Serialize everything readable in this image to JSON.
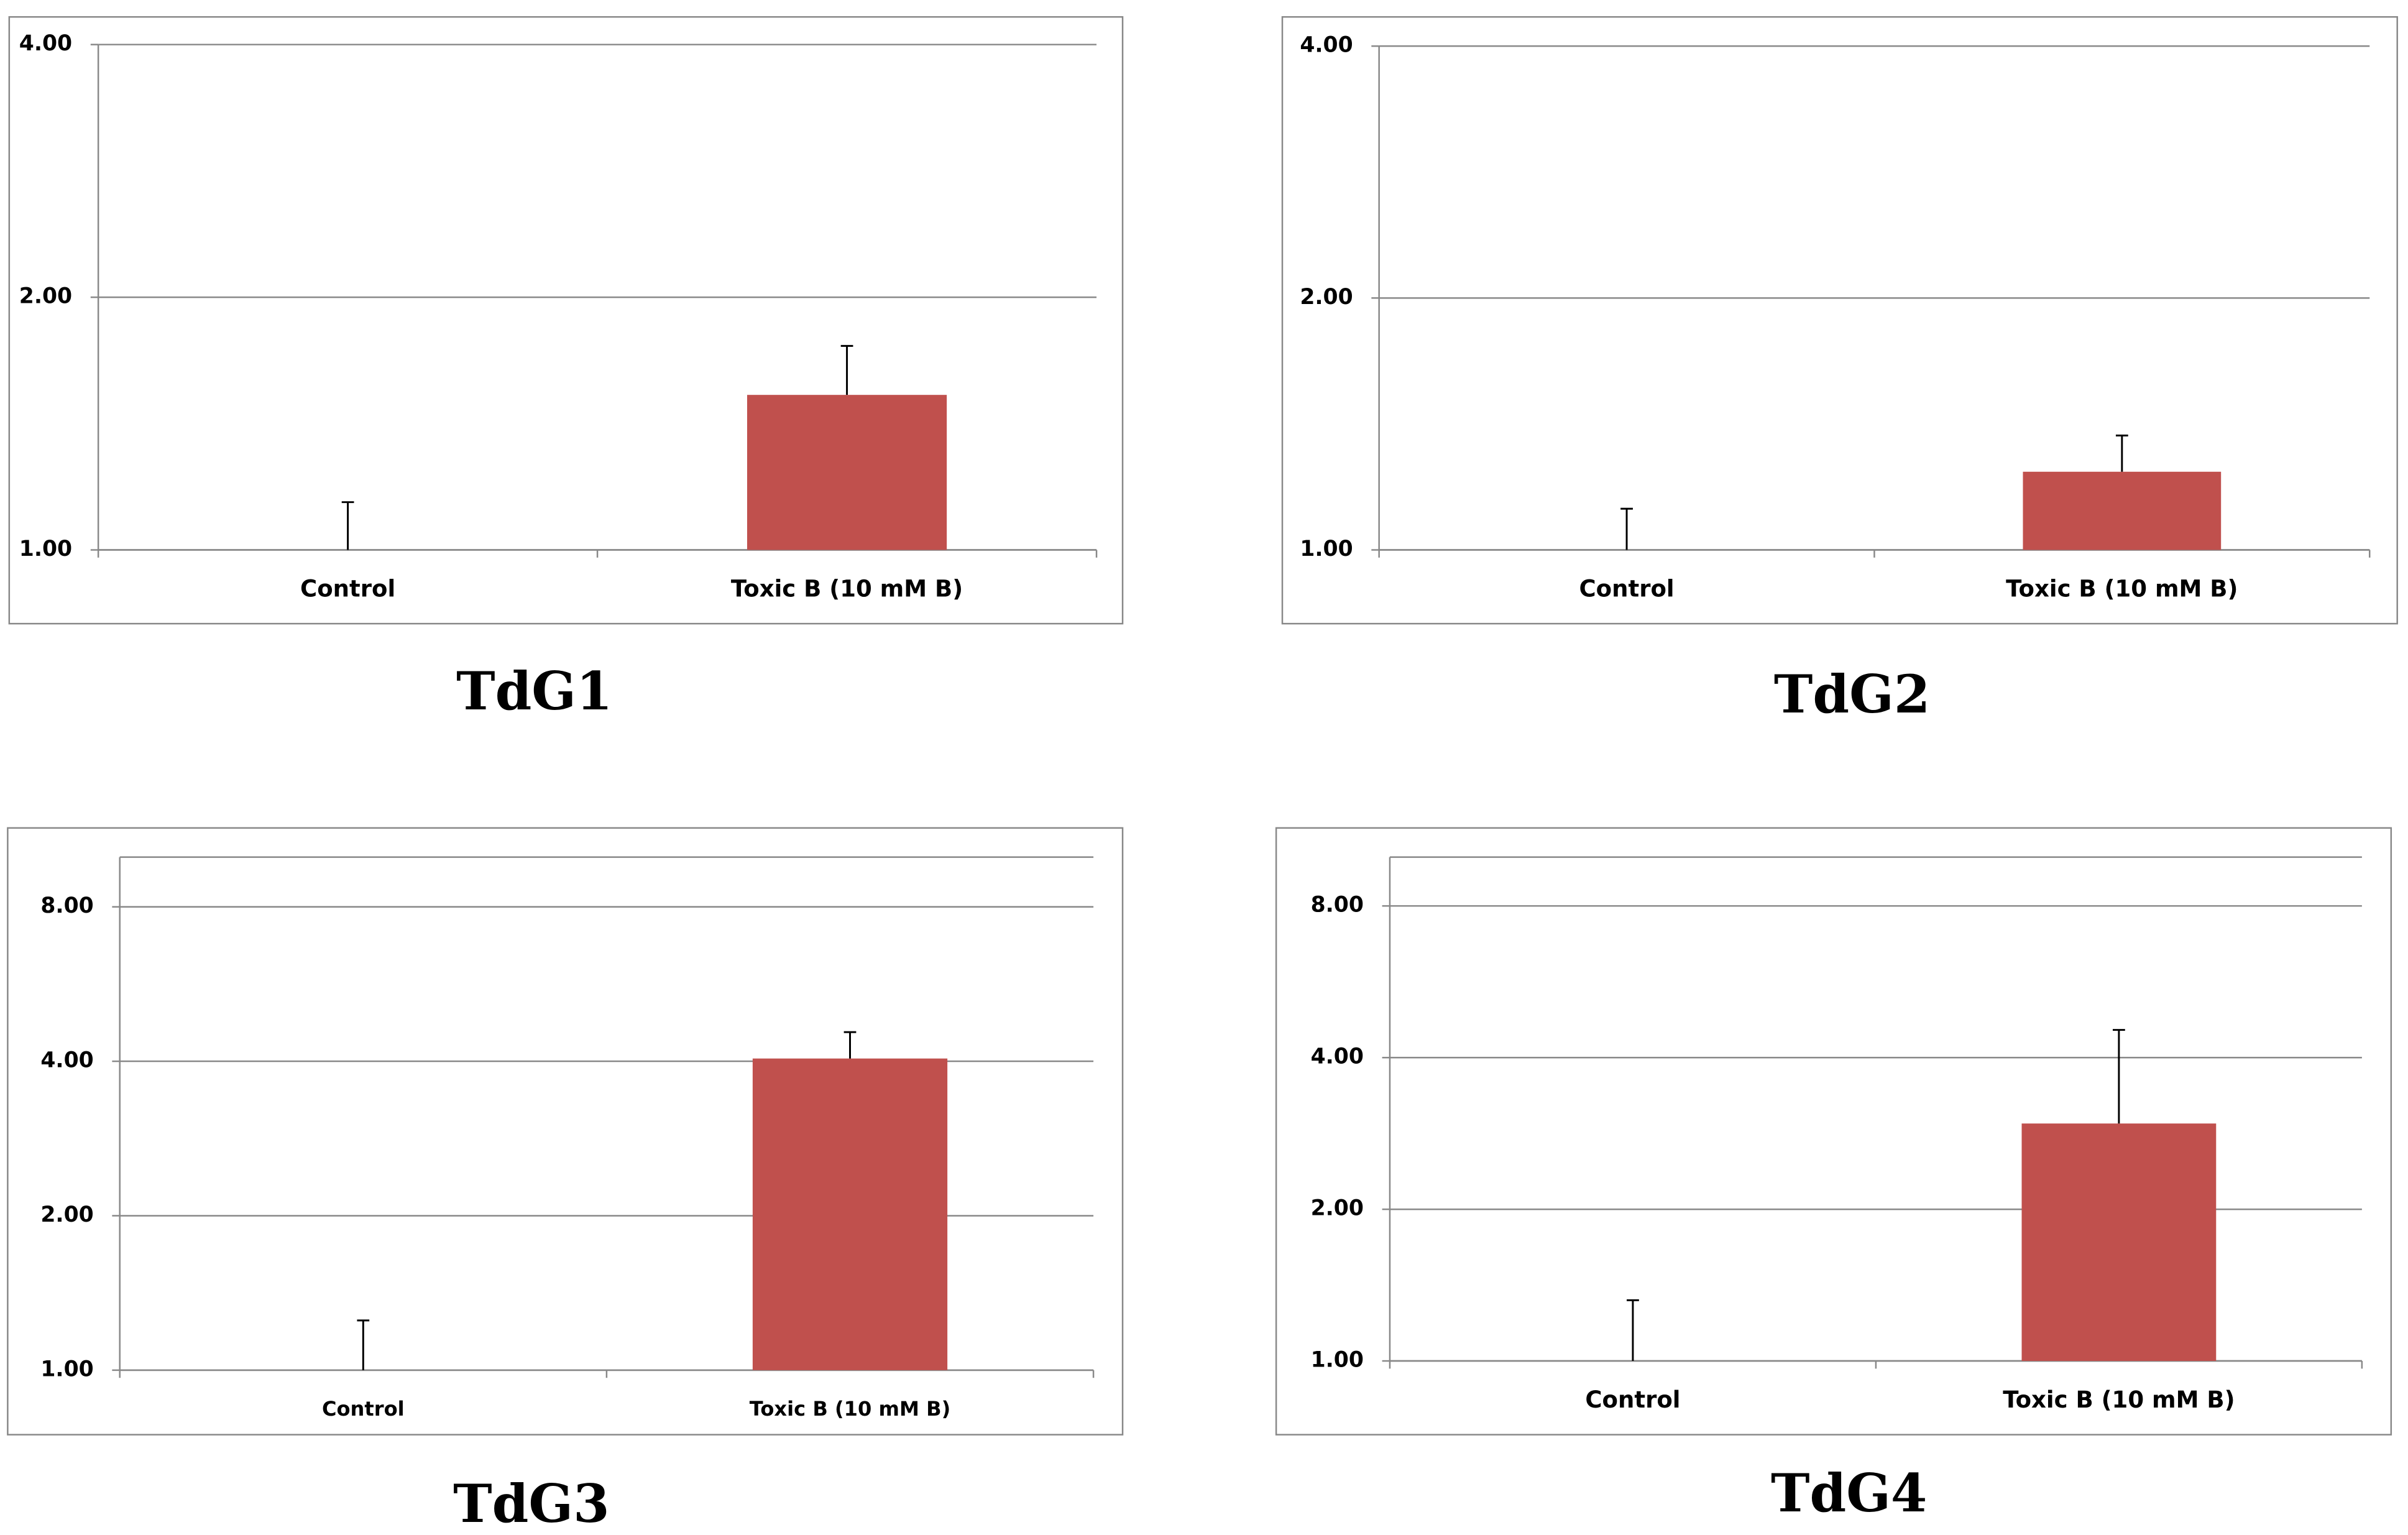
{
  "chart_data": [
    {
      "type": "bar",
      "title": "TdG1",
      "yscale": "log",
      "grid": true,
      "color": "#c0504d",
      "categories": [
        "Control",
        "Toxic B (10 mM B)"
      ],
      "values": [
        1.0,
        1.53
      ],
      "errors": [
        0.14,
        0.22
      ],
      "ylim": [
        1,
        4
      ],
      "yticks": [
        {
          "value": 1,
          "label": "1.00"
        },
        {
          "value": 2,
          "label": "2.00"
        },
        {
          "value": 4,
          "label": "4.00"
        }
      ]
    },
    {
      "type": "bar",
      "title": "TdG2",
      "yscale": "log",
      "grid": true,
      "color": "#c0504d",
      "categories": [
        "Control",
        "Toxic B (10 mM B)"
      ],
      "values": [
        1.0,
        1.24
      ],
      "errors": [
        0.12,
        0.13
      ],
      "ylim": [
        1,
        4
      ],
      "yticks": [
        {
          "value": 1,
          "label": "1.00"
        },
        {
          "value": 2,
          "label": "2.00"
        },
        {
          "value": 4,
          "label": "4.00"
        }
      ]
    },
    {
      "type": "bar",
      "title": "TdG3",
      "yscale": "log",
      "grid": true,
      "color": "#c0504d",
      "categories": [
        "Control",
        "Toxic B (10 mM B)"
      ],
      "values": [
        1.0,
        4.05
      ],
      "errors": [
        0.25,
        0.51
      ],
      "ylim": [
        1,
        10
      ],
      "yticks": [
        {
          "value": 1,
          "label": "1.00"
        },
        {
          "value": 2,
          "label": "2.00"
        },
        {
          "value": 4,
          "label": "4.00"
        },
        {
          "value": 8,
          "label": "8.00"
        }
      ]
    },
    {
      "type": "bar",
      "title": "TdG4",
      "yscale": "log",
      "grid": true,
      "color": "#c0504d",
      "categories": [
        "Control",
        "Toxic B (10 mM B)"
      ],
      "values": [
        1.0,
        2.96
      ],
      "errors": [
        0.32,
        1.58
      ],
      "ylim": [
        1,
        10
      ],
      "yticks": [
        {
          "value": 1,
          "label": "1.00"
        },
        {
          "value": 2,
          "label": "2.00"
        },
        {
          "value": 4,
          "label": "4.00"
        },
        {
          "value": 8,
          "label": "8.00"
        }
      ]
    }
  ]
}
